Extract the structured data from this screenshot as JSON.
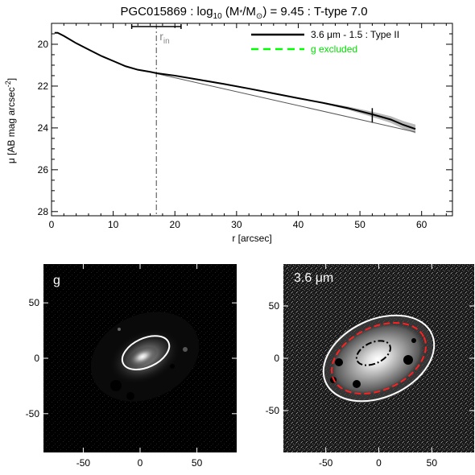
{
  "chart_data": [
    {
      "type": "line",
      "title": "PGC015869 : log10 (M*/M⊙) = 9.45 : T-type 7.0",
      "title_parts": {
        "pre": "PGC015869 : log",
        "sub": "10",
        "mid": " (M",
        "star": "*",
        "slash": "/M",
        "sun": "⊙",
        "post": ") = 9.45 : T-type 7.0"
      },
      "xlabel": "r [arcsec]",
      "ylabel": "μ [AB mag arcsec",
      "ylabel_sup": "-2",
      "ylabel_close": "]",
      "xlim": [
        0,
        65
      ],
      "ylim": [
        28.2,
        19.0
      ],
      "y_inverted": true,
      "xticks": [
        0,
        10,
        20,
        30,
        40,
        50,
        60
      ],
      "yticks": [
        20,
        22,
        24,
        26,
        28
      ],
      "grid": false,
      "legend_position": "top-right",
      "legend": [
        {
          "label": "3.6 μm - 1.5 : Type II",
          "color": "#000000",
          "style": "solid"
        },
        {
          "label": "g excluded",
          "color": "#00ff00",
          "style": "dashed"
        }
      ],
      "series": [
        {
          "name": "3.6 μm - 1.5",
          "color": "#000000",
          "x": [
            0.5,
            1,
            2,
            4,
            6,
            8,
            10,
            12,
            14,
            16,
            17,
            20,
            24,
            28,
            32,
            36,
            40,
            44,
            48,
            52,
            55,
            57,
            59
          ],
          "y": [
            19.45,
            19.45,
            19.6,
            19.95,
            20.25,
            20.55,
            20.8,
            21.05,
            21.22,
            21.32,
            21.38,
            21.5,
            21.7,
            21.9,
            22.12,
            22.35,
            22.58,
            22.8,
            23.05,
            23.35,
            23.6,
            23.85,
            24.05
          ]
        }
      ],
      "fit": {
        "x": [
          17,
          59
        ],
        "y": [
          21.4,
          24.2
        ],
        "color": "#555555"
      },
      "r_in": {
        "label": "r",
        "sub": "in",
        "value": 17,
        "err_low": 13,
        "err_high": 21
      },
      "break_marker": {
        "x": 52,
        "y": 23.4
      }
    },
    {
      "type": "heatmap",
      "panel_label": "g",
      "xlim": [
        -85,
        85
      ],
      "ylim": [
        -85,
        85
      ],
      "xticks": [
        -50,
        0,
        50
      ],
      "yticks": [
        -50,
        0,
        50
      ],
      "ellipses": [
        {
          "cx": 5,
          "cy": 5,
          "rx": 22,
          "ry": 13,
          "angle": 25,
          "color": "#ffffff",
          "style": "solid"
        }
      ]
    },
    {
      "type": "heatmap",
      "panel_label": "3.6 μm",
      "xlim": [
        -90,
        90
      ],
      "ylim": [
        -90,
        90
      ],
      "xticks": [
        -50,
        0,
        50
      ],
      "yticks": [
        -50,
        0,
        50
      ],
      "ellipses": [
        {
          "cx": 0,
          "cy": 0,
          "rx": 55,
          "ry": 37,
          "angle": 25,
          "color": "#ffffff",
          "style": "solid"
        },
        {
          "cx": 0,
          "cy": 0,
          "rx": 47,
          "ry": 30,
          "angle": 25,
          "color": "#ff2020",
          "style": "dashed"
        },
        {
          "cx": -5,
          "cy": 5,
          "rx": 17,
          "ry": 10,
          "angle": 25,
          "color": "#000000",
          "style": "dashdot"
        }
      ]
    }
  ]
}
